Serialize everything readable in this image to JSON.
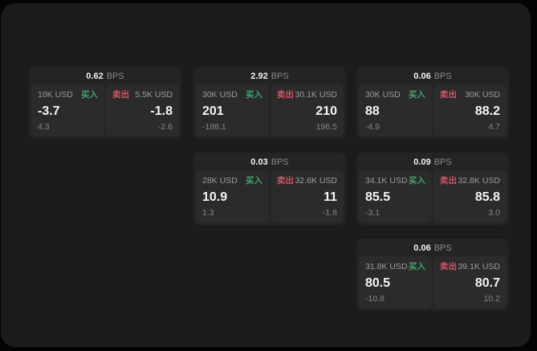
{
  "labels": {
    "bps_unit": "BPS",
    "buy": "买入",
    "sell": "卖出"
  },
  "colors": {
    "buy": "#3fa56d",
    "sell": "#cf5565",
    "background": "#040404",
    "panel": "#1c1c1c",
    "card": "#242424",
    "tile": "#2b2b2b"
  },
  "cards": [
    {
      "col": 1,
      "row": 1,
      "bps": "0.62",
      "buy": {
        "size": "10K USD",
        "price": "-3.7",
        "change": "4.3"
      },
      "sell": {
        "size": "5.5K USD",
        "price": "-1.8",
        "change": "-2.6"
      }
    },
    {
      "col": 2,
      "row": 1,
      "bps": "2.92",
      "buy": {
        "size": "30K USD",
        "price": "201",
        "change": "-188.1"
      },
      "sell": {
        "size": "30.1K USD",
        "price": "210",
        "change": "196.5"
      }
    },
    {
      "col": 3,
      "row": 1,
      "bps": "0.06",
      "buy": {
        "size": "30K USD",
        "price": "88",
        "change": "-4.9"
      },
      "sell": {
        "size": "30K USD",
        "price": "88.2",
        "change": "4.7"
      }
    },
    {
      "col": 2,
      "row": 2,
      "bps": "0.03",
      "buy": {
        "size": "28K USD",
        "price": "10.9",
        "change": "1.3"
      },
      "sell": {
        "size": "32.6K USD",
        "price": "11",
        "change": "-1.8"
      }
    },
    {
      "col": 3,
      "row": 2,
      "bps": "0.09",
      "buy": {
        "size": "34.1K USD",
        "price": "85.5",
        "change": "-3.1"
      },
      "sell": {
        "size": "32.8K USD",
        "price": "85.8",
        "change": "3.0"
      }
    },
    {
      "col": 3,
      "row": 3,
      "bps": "0.06",
      "buy": {
        "size": "31.8K USD",
        "price": "80.5",
        "change": "-10.8"
      },
      "sell": {
        "size": "39.1K USD",
        "price": "80.7",
        "change": "10.2"
      }
    }
  ]
}
